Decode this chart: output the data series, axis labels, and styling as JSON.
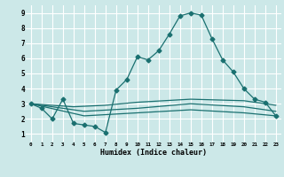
{
  "xlabel": "Humidex (Indice chaleur)",
  "ylabel": "",
  "background_color": "#cce8e8",
  "grid_color": "#ffffff",
  "line_color": "#1a7070",
  "xlim": [
    -0.5,
    23.5
  ],
  "ylim": [
    0.5,
    9.5
  ],
  "xticks": [
    0,
    1,
    2,
    3,
    4,
    5,
    6,
    7,
    8,
    9,
    10,
    11,
    12,
    13,
    14,
    15,
    16,
    17,
    18,
    19,
    20,
    21,
    22,
    23
  ],
  "yticks": [
    1,
    2,
    3,
    4,
    5,
    6,
    7,
    8,
    9
  ],
  "series": [
    {
      "x": [
        0,
        1,
        2,
        3,
        4,
        5,
        6,
        7,
        8,
        9,
        10,
        11,
        12,
        13,
        14,
        15,
        16,
        17,
        18,
        19,
        20,
        21,
        22,
        23
      ],
      "y": [
        3.0,
        2.7,
        2.0,
        3.3,
        1.7,
        1.6,
        1.5,
        1.1,
        3.9,
        4.6,
        6.1,
        5.9,
        6.5,
        7.6,
        8.8,
        9.0,
        8.85,
        7.3,
        5.9,
        5.1,
        4.0,
        3.3,
        3.1,
        2.2
      ],
      "marker": "D",
      "markersize": 2.5
    },
    {
      "x": [
        0,
        4,
        7,
        10,
        15,
        20,
        23
      ],
      "y": [
        3.0,
        2.8,
        2.9,
        3.1,
        3.3,
        3.2,
        2.9
      ],
      "marker": null,
      "markersize": 0
    },
    {
      "x": [
        0,
        5,
        10,
        15,
        20,
        23
      ],
      "y": [
        3.0,
        2.5,
        2.7,
        3.0,
        2.8,
        2.5
      ],
      "marker": null,
      "markersize": 0
    },
    {
      "x": [
        0,
        5,
        10,
        15,
        20,
        23
      ],
      "y": [
        3.0,
        2.2,
        2.4,
        2.6,
        2.4,
        2.2
      ],
      "marker": null,
      "markersize": 0
    }
  ]
}
